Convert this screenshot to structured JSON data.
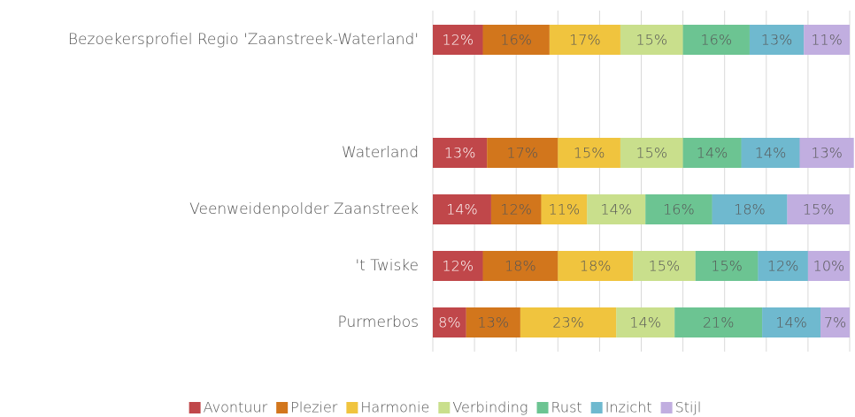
{
  "chart_data": {
    "type": "stacked-bar-horizontal",
    "categories": [
      "Bezoekersprofiel Regio 'Zaanstreek-Waterland'",
      null,
      "Waterland",
      "Veenweidenpolder Zaanstreek",
      "'t Twiske",
      "Purmerbos"
    ],
    "series": [
      {
        "name": "Avontuur",
        "color": "#c0474a",
        "values": [
          12,
          null,
          13,
          14,
          12,
          8
        ],
        "value_labels": [
          "12%",
          null,
          "13%",
          "14%",
          "12%",
          "8%"
        ]
      },
      {
        "name": "Plezier",
        "color": "#d2761c",
        "values": [
          16,
          null,
          17,
          12,
          18,
          13
        ],
        "value_labels": [
          "16%",
          null,
          "17%",
          "12%",
          "18%",
          "13%"
        ]
      },
      {
        "name": "Harmonie",
        "color": "#f0c43e",
        "values": [
          17,
          null,
          15,
          11,
          18,
          23
        ],
        "value_labels": [
          "17%",
          null,
          "15%",
          "11%",
          "18%",
          "23%"
        ]
      },
      {
        "name": "Verbinding",
        "color": "#c9df8c",
        "values": [
          15,
          null,
          15,
          14,
          15,
          14
        ],
        "value_labels": [
          "15%",
          null,
          "15%",
          "14%",
          "15%",
          "14%"
        ]
      },
      {
        "name": "Rust",
        "color": "#6cc492",
        "values": [
          16,
          null,
          14,
          16,
          15,
          21
        ],
        "value_labels": [
          "16%",
          null,
          "14%",
          "16%",
          "15%",
          "21%"
        ]
      },
      {
        "name": "Inzicht",
        "color": "#6fb9cf",
        "values": [
          13,
          null,
          14,
          18,
          12,
          14
        ],
        "value_labels": [
          "13%",
          null,
          "14%",
          "18%",
          "12%",
          "14%"
        ]
      },
      {
        "name": "Stijl",
        "color": "#c1aee0",
        "values": [
          11,
          null,
          13,
          15,
          10,
          7
        ],
        "value_labels": [
          "11%",
          null,
          "13%",
          "15%",
          "10%",
          "7%"
        ]
      }
    ],
    "xlim": [
      0,
      100
    ],
    "xticks": [
      0,
      10,
      20,
      30,
      40,
      50,
      60,
      70,
      80,
      90,
      100
    ],
    "grid": true,
    "legend": "bottom"
  }
}
